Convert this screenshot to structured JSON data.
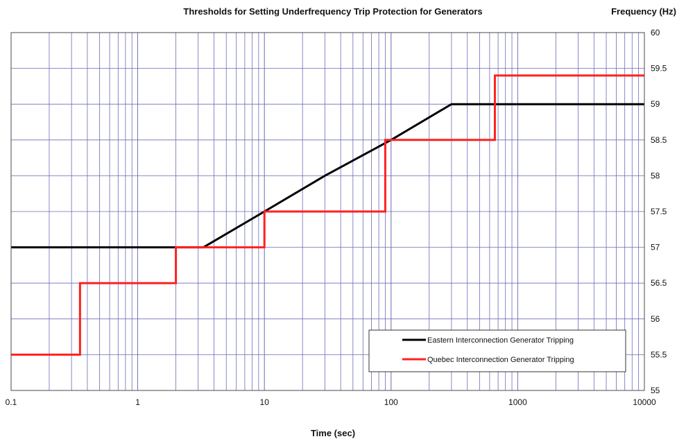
{
  "chart_data": {
    "type": "line",
    "title": "Thresholds for Setting Underfrequency Trip Protection for Generators",
    "xlabel": "Time (sec)",
    "ylabel": "Frequency (Hz)",
    "xscale": "log",
    "xlim": [
      0.1,
      10000
    ],
    "ylim": [
      55,
      60
    ],
    "xticks": [
      "0.1",
      "1",
      "10",
      "100",
      "1000",
      "10000"
    ],
    "yticks": [
      "55",
      "55.5",
      "56",
      "56.5",
      "57",
      "57.5",
      "58",
      "58.5",
      "59",
      "59.5",
      "60"
    ],
    "grid": true,
    "legend_position": "bottom-right",
    "series": [
      {
        "name": "Eastern Interconnection Generator Tripping",
        "color": "#000000",
        "x": [
          0.1,
          2,
          3.3,
          10,
          30,
          100,
          300,
          10000
        ],
        "y": [
          57.0,
          57.0,
          57.0,
          57.5,
          58.0,
          58.5,
          59.0,
          59.0
        ]
      },
      {
        "name": "Quebec Interconnection Generator Tripping",
        "color": "#ff2020",
        "x": [
          0.1,
          0.35,
          0.35,
          2,
          2,
          10,
          10,
          90,
          90,
          660,
          660,
          10000
        ],
        "y": [
          55.5,
          55.5,
          56.5,
          56.5,
          57.0,
          57.0,
          57.5,
          57.5,
          58.5,
          58.5,
          59.4,
          59.4
        ]
      }
    ]
  }
}
